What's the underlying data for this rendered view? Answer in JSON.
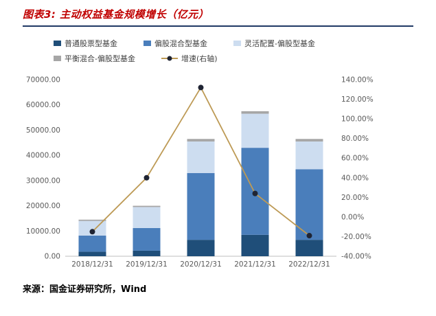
{
  "header": {
    "title": "图表3: 主动权益基金规模增长（亿元）"
  },
  "footer": {
    "source": "来源：国金证券研究所，Wind"
  },
  "colors": {
    "title": "#c00000",
    "divider": "#1f3864",
    "axis_text": "#595959",
    "axis_line": "#bfbfbf",
    "line": "#bd9a55",
    "marker": "#1f2433"
  },
  "chart_data": {
    "type": "bar",
    "subtype": "stacked-bars-with-line-dual-axis",
    "title": "主动权益基金规模增长（亿元）",
    "categories": [
      "2018/12/31",
      "2019/12/31",
      "2020/12/31",
      "2021/12/31",
      "2022/12/31"
    ],
    "series": [
      {
        "name": "普通股票型基金",
        "kind": "bar",
        "axis": "left",
        "color": "#1f4e79",
        "values": [
          1800,
          2200,
          6500,
          8500,
          6500
        ]
      },
      {
        "name": "偏股混合型基金",
        "kind": "bar",
        "axis": "left",
        "color": "#4a7ebb",
        "values": [
          6400,
          9000,
          26500,
          34500,
          28000
        ]
      },
      {
        "name": "灵活配置-偏股型基金",
        "kind": "bar",
        "axis": "left",
        "color": "#cdddf0",
        "values": [
          5800,
          8300,
          12500,
          13500,
          11000
        ]
      },
      {
        "name": "平衡混合-偏股型基金",
        "kind": "bar",
        "axis": "left",
        "color": "#a6a6a6",
        "values": [
          500,
          500,
          1000,
          1000,
          1000
        ]
      },
      {
        "name": "增速(右轴)",
        "kind": "line",
        "axis": "right",
        "color": "#bd9a55",
        "values": [
          -15,
          40,
          132,
          24,
          -19
        ]
      }
    ],
    "left_axis": {
      "min": 0,
      "max": 70000,
      "step": 10000,
      "format": "number2"
    },
    "right_axis": {
      "min": -40,
      "max": 140,
      "step": 20,
      "format": "percent2"
    },
    "legend_position": "top",
    "grid": false
  }
}
